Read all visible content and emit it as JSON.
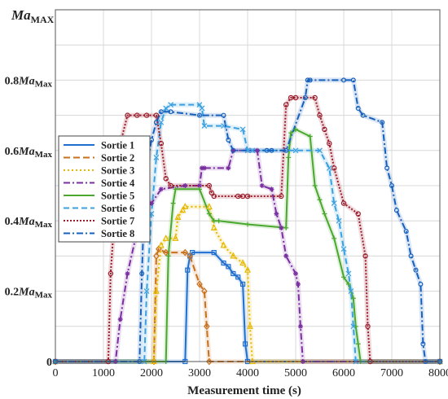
{
  "chart_data": {
    "type": "line",
    "ylabel": {
      "main": "Ma",
      "sub": "MAX"
    },
    "xlabel": "Measurement time (s)",
    "xlim": [
      0,
      8000
    ],
    "ylim": [
      0,
      1.0
    ],
    "xticks": [
      0,
      1000,
      2000,
      3000,
      4000,
      5000,
      6000,
      7000,
      8000
    ],
    "yticks": [
      {
        "value": 0,
        "label": "0",
        "suffix": ""
      },
      {
        "value": 0.2,
        "label": "0.2",
        "suffix": "Ma",
        "sub": "Max"
      },
      {
        "value": 0.4,
        "label": "0.4",
        "suffix": "Ma",
        "sub": "Max"
      },
      {
        "value": 0.6,
        "label": "0.6",
        "suffix": "Ma",
        "sub": "Max"
      },
      {
        "value": 0.8,
        "label": "0.8",
        "suffix": "Ma",
        "sub": "Max"
      }
    ],
    "grid": true,
    "legend_position": "left-middle",
    "series": [
      {
        "name": "Sortie 1",
        "color": "#1f6fd1",
        "dash": "",
        "marker": "square",
        "x": [
          0,
          2700,
          2750,
          2800,
          2850,
          3300,
          3500,
          3600,
          3700,
          3800,
          3900,
          3950,
          4000,
          8000
        ],
        "y": [
          0,
          0,
          0.26,
          0.3,
          0.31,
          0.31,
          0.28,
          0.27,
          0.25,
          0.24,
          0.22,
          0.05,
          0,
          0
        ]
      },
      {
        "name": "Sortie 2",
        "color": "#c8701c",
        "dash": "8,4",
        "marker": "diamond",
        "x": [
          0,
          2050,
          2100,
          2150,
          2300,
          2700,
          2800,
          3000,
          3100,
          3150,
          3200,
          8000
        ],
        "y": [
          0,
          0,
          0.3,
          0.32,
          0.31,
          0.31,
          0.3,
          0.22,
          0.2,
          0.1,
          0,
          0
        ]
      },
      {
        "name": "Sortie 3",
        "color": "#e6b800",
        "dash": "2,3",
        "marker": "triangle",
        "x": [
          0,
          2050,
          2100,
          2200,
          2300,
          2500,
          2550,
          2650,
          2700,
          3200,
          3300,
          3500,
          3700,
          3900,
          4000,
          4050,
          4100,
          8000
        ],
        "y": [
          0,
          0,
          0.2,
          0.33,
          0.35,
          0.35,
          0.41,
          0.43,
          0.44,
          0.44,
          0.38,
          0.33,
          0.3,
          0.28,
          0.26,
          0.1,
          0,
          0
        ]
      },
      {
        "name": "Sortie 4",
        "color": "#7a2fa0",
        "dash": "8,3,2,3",
        "marker": "star",
        "x": [
          0,
          1250,
          1350,
          1500,
          1700,
          2000,
          2200,
          2700,
          3000,
          3050,
          3100,
          3600,
          3700,
          4200,
          4300,
          4500,
          4600,
          4700,
          4800,
          5000,
          5050,
          5100,
          5150,
          8000
        ],
        "y": [
          0,
          0,
          0.12,
          0.25,
          0.37,
          0.45,
          0.49,
          0.5,
          0.5,
          0.55,
          0.55,
          0.55,
          0.6,
          0.6,
          0.5,
          0.49,
          0.42,
          0.38,
          0.3,
          0.25,
          0.22,
          0.1,
          0,
          0
        ]
      },
      {
        "name": "Sortie 5",
        "color": "#4aa82e",
        "dash": "",
        "marker": "plus",
        "x": [
          0,
          2300,
          2350,
          2450,
          2500,
          3000,
          3200,
          3300,
          3400,
          4000,
          4800,
          4850,
          4900,
          5000,
          5300,
          5400,
          5500,
          5600,
          5800,
          6000,
          6100,
          6200,
          6250,
          6300,
          6350,
          8000
        ],
        "y": [
          0,
          0,
          0.3,
          0.45,
          0.49,
          0.49,
          0.42,
          0.4,
          0.4,
          0.39,
          0.38,
          0.58,
          0.65,
          0.66,
          0.64,
          0.5,
          0.46,
          0.42,
          0.35,
          0.24,
          0.22,
          0.18,
          0.1,
          0.05,
          0,
          0
        ]
      },
      {
        "name": "Sortie 6",
        "color": "#3aa0e0",
        "dash": "7,4",
        "marker": "cross",
        "x": [
          0,
          1850,
          1900,
          2000,
          2100,
          2200,
          2300,
          2400,
          3000,
          3050,
          3100,
          3500,
          3900,
          4000,
          4100,
          5000,
          5500,
          5700,
          5800,
          5900,
          6000,
          6100,
          6150,
          6200,
          6250,
          8000
        ],
        "y": [
          0,
          0,
          0.2,
          0.42,
          0.58,
          0.68,
          0.72,
          0.73,
          0.73,
          0.72,
          0.67,
          0.67,
          0.66,
          0.6,
          0.6,
          0.6,
          0.6,
          0.55,
          0.45,
          0.4,
          0.32,
          0.25,
          0.2,
          0.1,
          0,
          0
        ]
      },
      {
        "name": "Sortie 7",
        "color": "#9a1c2c",
        "dash": "2,2",
        "marker": "circle",
        "x": [
          0,
          1100,
          1150,
          1250,
          1350,
          1500,
          1700,
          1900,
          2100,
          2200,
          2300,
          2400,
          3200,
          3250,
          3300,
          3800,
          3900,
          4000,
          4700,
          4800,
          4900,
          5000,
          5400,
          5500,
          5600,
          5700,
          5800,
          6000,
          6300,
          6450,
          6500,
          6550,
          8000
        ],
        "y": [
          0,
          0,
          0.25,
          0.45,
          0.62,
          0.7,
          0.7,
          0.7,
          0.7,
          0.62,
          0.52,
          0.5,
          0.5,
          0.48,
          0.47,
          0.47,
          0.47,
          0.47,
          0.47,
          0.73,
          0.75,
          0.75,
          0.75,
          0.7,
          0.66,
          0.62,
          0.55,
          0.45,
          0.42,
          0.3,
          0.1,
          0,
          0
        ]
      },
      {
        "name": "Sortie 8",
        "color": "#1560bd",
        "dash": "8,3,2,3",
        "marker": "dot",
        "x": [
          0,
          1750,
          1800,
          1850,
          1900,
          2000,
          2100,
          2200,
          2400,
          3000,
          3500,
          3600,
          3700,
          4400,
          4500,
          4800,
          5200,
          5250,
          5300,
          6000,
          6200,
          6300,
          6400,
          6800,
          6900,
          7000,
          7100,
          7300,
          7400,
          7500,
          7600,
          7650,
          7700,
          8000
        ],
        "y": [
          0,
          0,
          0.25,
          0.45,
          0.55,
          0.63,
          0.68,
          0.71,
          0.71,
          0.7,
          0.7,
          0.63,
          0.6,
          0.6,
          0.6,
          0.6,
          0.75,
          0.8,
          0.8,
          0.8,
          0.8,
          0.72,
          0.7,
          0.68,
          0.55,
          0.5,
          0.43,
          0.37,
          0.3,
          0.26,
          0.22,
          0.05,
          0,
          0
        ]
      }
    ]
  }
}
